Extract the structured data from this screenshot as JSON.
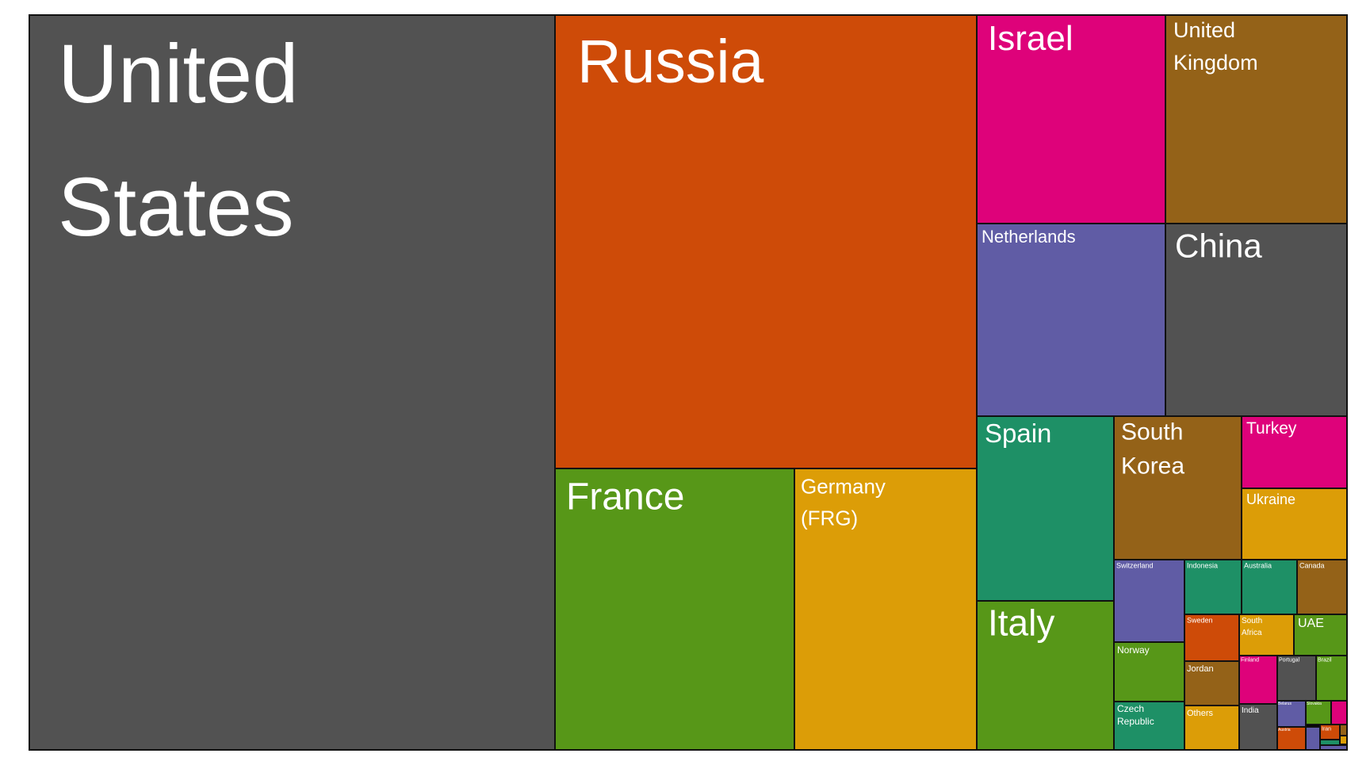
{
  "chart_data": {
    "type": "treemap",
    "title": "",
    "items": [
      {
        "label": "United States",
        "color": "#525252"
      },
      {
        "label": "Russia",
        "color": "#CE4B08"
      },
      {
        "label": "France",
        "color": "#579718"
      },
      {
        "label": "Germany (FRG)",
        "color": "#DC9D07"
      },
      {
        "label": "Israel",
        "color": "#DE027A"
      },
      {
        "label": "United Kingdom",
        "color": "#946218"
      },
      {
        "label": "Netherlands",
        "color": "#605CA5"
      },
      {
        "label": "China",
        "color": "#525252"
      },
      {
        "label": "Spain",
        "color": "#1E9066"
      },
      {
        "label": "Italy",
        "color": "#579718"
      },
      {
        "label": "South Korea",
        "color": "#946218"
      },
      {
        "label": "Turkey",
        "color": "#DE027A"
      },
      {
        "label": "Ukraine",
        "color": "#DC9D07"
      },
      {
        "label": "Switzerland",
        "color": "#605CA5"
      },
      {
        "label": "Indonesia",
        "color": "#1E9066"
      },
      {
        "label": "Australia",
        "color": "#1E9066"
      },
      {
        "label": "Canada",
        "color": "#946218"
      },
      {
        "label": "Norway",
        "color": "#579718"
      },
      {
        "label": "Czech Republic",
        "color": "#1E9066"
      },
      {
        "label": "Sweden",
        "color": "#CE4B08"
      },
      {
        "label": "South Africa",
        "color": "#DC9D07"
      },
      {
        "label": "UAE",
        "color": "#579718"
      },
      {
        "label": "Jordan",
        "color": "#946218"
      },
      {
        "label": "Others",
        "color": "#DC9D07"
      },
      {
        "label": "Finland",
        "color": "#DE027A"
      },
      {
        "label": "Portugal",
        "color": "#525252"
      },
      {
        "label": "Brazil",
        "color": "#579718"
      },
      {
        "label": "India",
        "color": "#525252"
      },
      {
        "label": "Belarus",
        "color": "#605CA5"
      },
      {
        "label": "Slovakia",
        "color": "#579718"
      },
      {
        "label": "",
        "color": "#DE027A"
      },
      {
        "label": "Austria",
        "color": "#CE4B08"
      },
      {
        "label": "",
        "color": "#605CA5"
      },
      {
        "label": "Iran",
        "color": "#CE4B08"
      },
      {
        "label": "",
        "color": "#946218"
      },
      {
        "label": "",
        "color": "#1E9066"
      },
      {
        "label": "",
        "color": "#DC9D07"
      },
      {
        "label": "",
        "color": "#605CA5"
      }
    ]
  }
}
